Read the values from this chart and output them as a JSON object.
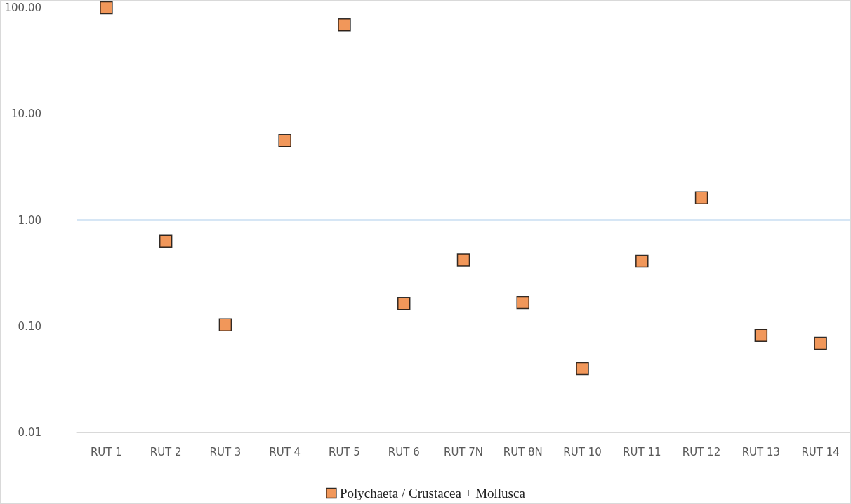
{
  "chart_data": {
    "type": "scatter",
    "categories": [
      "RUT 1",
      "RUT 2",
      "RUT 3",
      "RUT 4",
      "RUT 5",
      "RUT 6",
      "RUT 7N",
      "RUT 8N",
      "RUT 10",
      "RUT 11",
      "RUT 12",
      "RUT 13",
      "RUT 14"
    ],
    "series": [
      {
        "name": "Polychaeta / Crustacea + Mollusca",
        "color": "#ed7d31",
        "values": [
          100,
          0.63,
          0.103,
          5.6,
          69,
          0.164,
          0.42,
          0.167,
          0.04,
          0.41,
          1.62,
          0.082,
          0.069
        ]
      }
    ],
    "log": "y",
    "ylim": [
      0.01,
      100
    ],
    "yticks": [
      {
        "value": 0.01,
        "label": "0.01"
      },
      {
        "value": 0.1,
        "label": "0.10"
      },
      {
        "value": 1,
        "label": "1.00"
      },
      {
        "value": 10,
        "label": "10.00"
      },
      {
        "value": 100,
        "label": "100.00"
      }
    ],
    "ref_lines": [
      {
        "axis": "y",
        "value": 1,
        "color": "#5b9bd5"
      }
    ],
    "marker": "square",
    "grid": false,
    "legend": "bottom"
  }
}
